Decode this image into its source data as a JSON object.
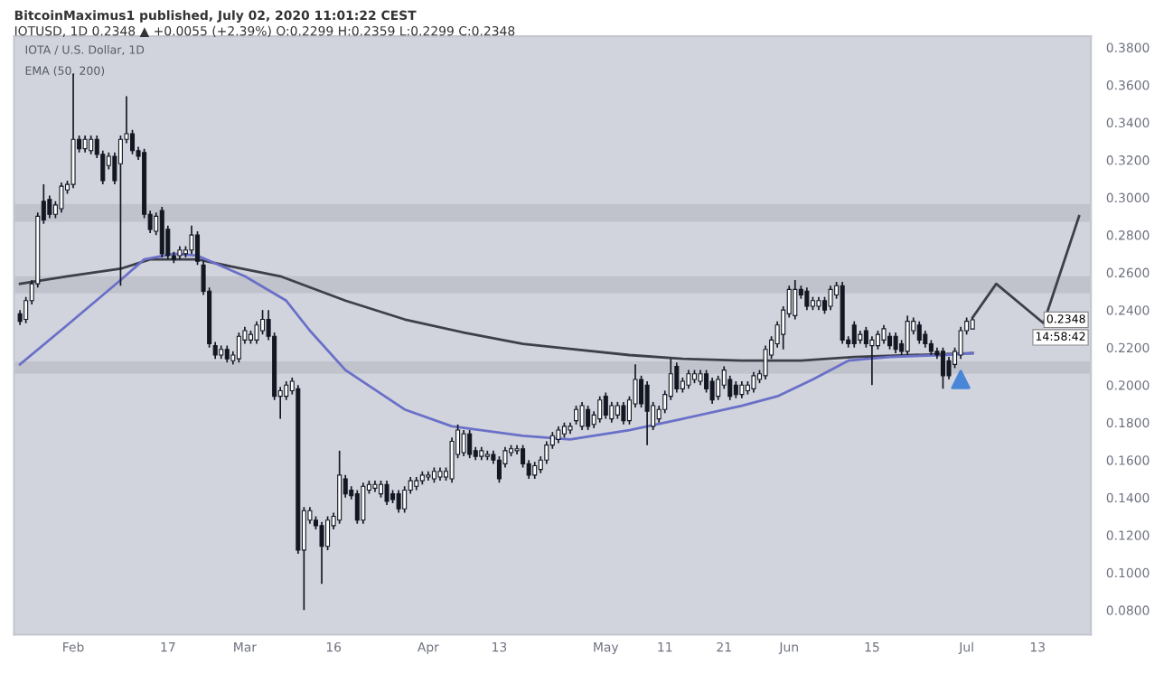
{
  "chart_data": {
    "type": "candlestick",
    "title": "BitcoinMaximus1 published, July 02, 2020 11:01:22 CEST",
    "subtitle": "IOTUSD, 1D 0.2348 ▲ +0.0055 (+2.39%) O:0.2299 H:0.2359 L:0.2299 C:0.2348",
    "annotations": [
      "IOTA / U.S. Dollar, 1D",
      "EMA (50, 200)",
      "0.2348",
      "14:58:42"
    ],
    "x": [
      "2020-01-23",
      "2020-01-24",
      "2020-01-25",
      "2020-01-26",
      "2020-01-27",
      "2020-01-28",
      "2020-01-29",
      "2020-01-30",
      "2020-01-31",
      "2020-02-01",
      "2020-02-02",
      "2020-02-03",
      "2020-02-04",
      "2020-02-05",
      "2020-02-06",
      "2020-02-07",
      "2020-02-08",
      "2020-02-09",
      "2020-02-10",
      "2020-02-11",
      "2020-02-12",
      "2020-02-13",
      "2020-02-14",
      "2020-02-15",
      "2020-02-16",
      "2020-02-17",
      "2020-02-18",
      "2020-02-19",
      "2020-02-20",
      "2020-02-21",
      "2020-02-22",
      "2020-02-23",
      "2020-02-24",
      "2020-02-25",
      "2020-02-26",
      "2020-02-27",
      "2020-02-28",
      "2020-02-29",
      "2020-03-01",
      "2020-03-02",
      "2020-03-03",
      "2020-03-04",
      "2020-03-05",
      "2020-03-06",
      "2020-03-07",
      "2020-03-08",
      "2020-03-09",
      "2020-03-10",
      "2020-03-11",
      "2020-03-12",
      "2020-03-13",
      "2020-03-14",
      "2020-03-15",
      "2020-03-16",
      "2020-03-17",
      "2020-03-18",
      "2020-03-19",
      "2020-03-20",
      "2020-03-21",
      "2020-03-22",
      "2020-03-23",
      "2020-03-24",
      "2020-03-25",
      "2020-03-26",
      "2020-03-27",
      "2020-03-28",
      "2020-03-29",
      "2020-03-30",
      "2020-03-31",
      "2020-04-01",
      "2020-04-02",
      "2020-04-03",
      "2020-04-04",
      "2020-04-05",
      "2020-04-06",
      "2020-04-07",
      "2020-04-08",
      "2020-04-09",
      "2020-04-10",
      "2020-04-11",
      "2020-04-12",
      "2020-04-13",
      "2020-04-14",
      "2020-04-15",
      "2020-04-16",
      "2020-04-17",
      "2020-04-18",
      "2020-04-19",
      "2020-04-20",
      "2020-04-21",
      "2020-04-22",
      "2020-04-23",
      "2020-04-24",
      "2020-04-25",
      "2020-04-26",
      "2020-04-27",
      "2020-04-28",
      "2020-04-29",
      "2020-04-30",
      "2020-05-01",
      "2020-05-02",
      "2020-05-03",
      "2020-05-04",
      "2020-05-05",
      "2020-05-06",
      "2020-05-07",
      "2020-05-08",
      "2020-05-09",
      "2020-05-10",
      "2020-05-11",
      "2020-05-12",
      "2020-05-13",
      "2020-05-14",
      "2020-05-15",
      "2020-05-16",
      "2020-05-17",
      "2020-05-18",
      "2020-05-19",
      "2020-05-20",
      "2020-05-21",
      "2020-05-22",
      "2020-05-23",
      "2020-05-24",
      "2020-05-25",
      "2020-05-26",
      "2020-05-27",
      "2020-05-28",
      "2020-05-29",
      "2020-05-30",
      "2020-05-31",
      "2020-06-01",
      "2020-06-02",
      "2020-06-03",
      "2020-06-04",
      "2020-06-05",
      "2020-06-06",
      "2020-06-07",
      "2020-06-08",
      "2020-06-09",
      "2020-06-10",
      "2020-06-11",
      "2020-06-12",
      "2020-06-13",
      "2020-06-14",
      "2020-06-15",
      "2020-06-16",
      "2020-06-17",
      "2020-06-18",
      "2020-06-19",
      "2020-06-20",
      "2020-06-21",
      "2020-06-22",
      "2020-06-23",
      "2020-06-24",
      "2020-06-25",
      "2020-06-26",
      "2020-06-27",
      "2020-06-28",
      "2020-06-29",
      "2020-06-30",
      "2020-07-01",
      "2020-07-02"
    ],
    "ohlc": [
      [
        0.238,
        0.24,
        0.232,
        0.234
      ],
      [
        0.235,
        0.247,
        0.233,
        0.245
      ],
      [
        0.245,
        0.256,
        0.243,
        0.254
      ],
      [
        0.254,
        0.292,
        0.252,
        0.29
      ],
      [
        0.298,
        0.307,
        0.286,
        0.288
      ],
      [
        0.299,
        0.301,
        0.289,
        0.291
      ],
      [
        0.291,
        0.298,
        0.289,
        0.296
      ],
      [
        0.294,
        0.308,
        0.292,
        0.306
      ],
      [
        0.304,
        0.309,
        0.302,
        0.307
      ],
      [
        0.307,
        0.366,
        0.305,
        0.331
      ],
      [
        0.331,
        0.333,
        0.324,
        0.326
      ],
      [
        0.326,
        0.333,
        0.324,
        0.331
      ],
      [
        0.325,
        0.333,
        0.323,
        0.331
      ],
      [
        0.331,
        0.333,
        0.321,
        0.323
      ],
      [
        0.323,
        0.325,
        0.307,
        0.309
      ],
      [
        0.317,
        0.324,
        0.315,
        0.322
      ],
      [
        0.322,
        0.324,
        0.307,
        0.309
      ],
      [
        0.318,
        0.333,
        0.253,
        0.331
      ],
      [
        0.331,
        0.354,
        0.329,
        0.334
      ],
      [
        0.334,
        0.336,
        0.323,
        0.325
      ],
      [
        0.325,
        0.327,
        0.32,
        0.322
      ],
      [
        0.324,
        0.326,
        0.289,
        0.291
      ],
      [
        0.291,
        0.293,
        0.281,
        0.283
      ],
      [
        0.282,
        0.292,
        0.28,
        0.29
      ],
      [
        0.293,
        0.295,
        0.268,
        0.27
      ],
      [
        0.283,
        0.285,
        0.267,
        0.269
      ],
      [
        0.269,
        0.271,
        0.265,
        0.267
      ],
      [
        0.269,
        0.274,
        0.267,
        0.272
      ],
      [
        0.27,
        0.274,
        0.268,
        0.272
      ],
      [
        0.272,
        0.285,
        0.27,
        0.28
      ],
      [
        0.28,
        0.282,
        0.264,
        0.266
      ],
      [
        0.264,
        0.266,
        0.248,
        0.25
      ],
      [
        0.25,
        0.252,
        0.22,
        0.222
      ],
      [
        0.221,
        0.223,
        0.214,
        0.216
      ],
      [
        0.216,
        0.221,
        0.214,
        0.219
      ],
      [
        0.219,
        0.221,
        0.212,
        0.214
      ],
      [
        0.213,
        0.218,
        0.211,
        0.216
      ],
      [
        0.214,
        0.228,
        0.212,
        0.226
      ],
      [
        0.224,
        0.231,
        0.222,
        0.229
      ],
      [
        0.224,
        0.229,
        0.222,
        0.227
      ],
      [
        0.224,
        0.234,
        0.222,
        0.232
      ],
      [
        0.229,
        0.24,
        0.227,
        0.235
      ],
      [
        0.235,
        0.24,
        0.224,
        0.226
      ],
      [
        0.226,
        0.228,
        0.192,
        0.194
      ],
      [
        0.194,
        0.199,
        0.182,
        0.197
      ],
      [
        0.194,
        0.202,
        0.192,
        0.2
      ],
      [
        0.197,
        0.204,
        0.195,
        0.202
      ],
      [
        0.198,
        0.2,
        0.11,
        0.112
      ],
      [
        0.112,
        0.135,
        0.08,
        0.133
      ],
      [
        0.128,
        0.135,
        0.126,
        0.133
      ],
      [
        0.128,
        0.13,
        0.123,
        0.125
      ],
      [
        0.125,
        0.127,
        0.094,
        0.114
      ],
      [
        0.114,
        0.13,
        0.112,
        0.128
      ],
      [
        0.125,
        0.132,
        0.123,
        0.13
      ],
      [
        0.128,
        0.165,
        0.126,
        0.152
      ],
      [
        0.15,
        0.152,
        0.14,
        0.142
      ],
      [
        0.144,
        0.146,
        0.139,
        0.141
      ],
      [
        0.142,
        0.144,
        0.126,
        0.128
      ],
      [
        0.128,
        0.148,
        0.126,
        0.146
      ],
      [
        0.144,
        0.149,
        0.142,
        0.147
      ],
      [
        0.145,
        0.149,
        0.143,
        0.147
      ],
      [
        0.142,
        0.149,
        0.14,
        0.147
      ],
      [
        0.147,
        0.149,
        0.136,
        0.138
      ],
      [
        0.142,
        0.144,
        0.137,
        0.139
      ],
      [
        0.142,
        0.144,
        0.132,
        0.134
      ],
      [
        0.134,
        0.146,
        0.132,
        0.144
      ],
      [
        0.144,
        0.151,
        0.142,
        0.149
      ],
      [
        0.146,
        0.151,
        0.144,
        0.149
      ],
      [
        0.149,
        0.154,
        0.147,
        0.152
      ],
      [
        0.151,
        0.154,
        0.149,
        0.152
      ],
      [
        0.15,
        0.156,
        0.148,
        0.154
      ],
      [
        0.151,
        0.156,
        0.149,
        0.154
      ],
      [
        0.151,
        0.156,
        0.149,
        0.154
      ],
      [
        0.15,
        0.172,
        0.148,
        0.17
      ],
      [
        0.163,
        0.179,
        0.161,
        0.176
      ],
      [
        0.164,
        0.176,
        0.162,
        0.174
      ],
      [
        0.174,
        0.176,
        0.161,
        0.163
      ],
      [
        0.165,
        0.167,
        0.16,
        0.162
      ],
      [
        0.162,
        0.167,
        0.16,
        0.165
      ],
      [
        0.162,
        0.165,
        0.16,
        0.163
      ],
      [
        0.163,
        0.165,
        0.158,
        0.16
      ],
      [
        0.16,
        0.162,
        0.148,
        0.15
      ],
      [
        0.158,
        0.167,
        0.156,
        0.165
      ],
      [
        0.164,
        0.168,
        0.162,
        0.166
      ],
      [
        0.165,
        0.168,
        0.163,
        0.166
      ],
      [
        0.166,
        0.168,
        0.156,
        0.158
      ],
      [
        0.158,
        0.16,
        0.15,
        0.152
      ],
      [
        0.152,
        0.159,
        0.15,
        0.157
      ],
      [
        0.155,
        0.162,
        0.153,
        0.16
      ],
      [
        0.16,
        0.17,
        0.158,
        0.168
      ],
      [
        0.168,
        0.175,
        0.166,
        0.173
      ],
      [
        0.171,
        0.178,
        0.169,
        0.176
      ],
      [
        0.174,
        0.18,
        0.172,
        0.178
      ],
      [
        0.176,
        0.18,
        0.174,
        0.178
      ],
      [
        0.181,
        0.189,
        0.179,
        0.187
      ],
      [
        0.178,
        0.191,
        0.176,
        0.189
      ],
      [
        0.187,
        0.189,
        0.176,
        0.178
      ],
      [
        0.179,
        0.186,
        0.177,
        0.184
      ],
      [
        0.182,
        0.194,
        0.18,
        0.192
      ],
      [
        0.194,
        0.196,
        0.182,
        0.184
      ],
      [
        0.182,
        0.191,
        0.18,
        0.189
      ],
      [
        0.184,
        0.191,
        0.182,
        0.189
      ],
      [
        0.189,
        0.191,
        0.179,
        0.181
      ],
      [
        0.181,
        0.194,
        0.179,
        0.192
      ],
      [
        0.19,
        0.211,
        0.188,
        0.203
      ],
      [
        0.203,
        0.205,
        0.188,
        0.19
      ],
      [
        0.2,
        0.202,
        0.168,
        0.186
      ],
      [
        0.178,
        0.191,
        0.176,
        0.189
      ],
      [
        0.182,
        0.189,
        0.18,
        0.187
      ],
      [
        0.187,
        0.197,
        0.185,
        0.195
      ],
      [
        0.194,
        0.214,
        0.192,
        0.206
      ],
      [
        0.21,
        0.212,
        0.196,
        0.198
      ],
      [
        0.198,
        0.204,
        0.196,
        0.202
      ],
      [
        0.2,
        0.208,
        0.198,
        0.206
      ],
      [
        0.203,
        0.208,
        0.201,
        0.206
      ],
      [
        0.202,
        0.208,
        0.2,
        0.206
      ],
      [
        0.206,
        0.208,
        0.196,
        0.198
      ],
      [
        0.202,
        0.204,
        0.19,
        0.192
      ],
      [
        0.194,
        0.205,
        0.192,
        0.203
      ],
      [
        0.2,
        0.21,
        0.198,
        0.208
      ],
      [
        0.203,
        0.205,
        0.192,
        0.194
      ],
      [
        0.2,
        0.202,
        0.193,
        0.195
      ],
      [
        0.195,
        0.202,
        0.193,
        0.2
      ],
      [
        0.197,
        0.202,
        0.195,
        0.2
      ],
      [
        0.198,
        0.207,
        0.196,
        0.205
      ],
      [
        0.203,
        0.208,
        0.201,
        0.206
      ],
      [
        0.205,
        0.221,
        0.203,
        0.219
      ],
      [
        0.216,
        0.226,
        0.214,
        0.224
      ],
      [
        0.222,
        0.234,
        0.22,
        0.232
      ],
      [
        0.227,
        0.242,
        0.219,
        0.24
      ],
      [
        0.238,
        0.253,
        0.236,
        0.251
      ],
      [
        0.237,
        0.256,
        0.235,
        0.251
      ],
      [
        0.251,
        0.253,
        0.246,
        0.248
      ],
      [
        0.25,
        0.252,
        0.24,
        0.242
      ],
      [
        0.242,
        0.247,
        0.24,
        0.245
      ],
      [
        0.242,
        0.247,
        0.24,
        0.245
      ],
      [
        0.245,
        0.247,
        0.238,
        0.24
      ],
      [
        0.242,
        0.253,
        0.24,
        0.251
      ],
      [
        0.248,
        0.255,
        0.246,
        0.253
      ],
      [
        0.253,
        0.255,
        0.222,
        0.224
      ],
      [
        0.224,
        0.226,
        0.22,
        0.222
      ],
      [
        0.232,
        0.234,
        0.22,
        0.222
      ],
      [
        0.224,
        0.229,
        0.222,
        0.227
      ],
      [
        0.229,
        0.231,
        0.22,
        0.222
      ],
      [
        0.221,
        0.226,
        0.2,
        0.224
      ],
      [
        0.221,
        0.229,
        0.219,
        0.227
      ],
      [
        0.224,
        0.232,
        0.222,
        0.23
      ],
      [
        0.226,
        0.228,
        0.219,
        0.221
      ],
      [
        0.226,
        0.228,
        0.217,
        0.219
      ],
      [
        0.222,
        0.224,
        0.216,
        0.218
      ],
      [
        0.218,
        0.237,
        0.216,
        0.234
      ],
      [
        0.229,
        0.236,
        0.227,
        0.234
      ],
      [
        0.232,
        0.234,
        0.222,
        0.224
      ],
      [
        0.227,
        0.229,
        0.22,
        0.222
      ],
      [
        0.222,
        0.224,
        0.216,
        0.218
      ],
      [
        0.218,
        0.22,
        0.214,
        0.216
      ],
      [
        0.218,
        0.22,
        0.198,
        0.205
      ],
      [
        0.213,
        0.215,
        0.203,
        0.205
      ],
      [
        0.211,
        0.22,
        0.209,
        0.218
      ],
      [
        0.216,
        0.231,
        0.214,
        0.229
      ],
      [
        0.229,
        0.236,
        0.227,
        0.234
      ],
      [
        0.2299,
        0.2359,
        0.2299,
        0.2348
      ]
    ],
    "series": [
      {
        "type": "line",
        "color": "#3d3f4a",
        "x": [
          "2020-01-23",
          "2020-01-31",
          "2020-02-09",
          "2020-02-14",
          "2020-02-22",
          "2020-02-28",
          "2020-03-07",
          "2020-03-18",
          "2020-03-28",
          "2020-04-07",
          "2020-04-17",
          "2020-04-26",
          "2020-05-05",
          "2020-05-14",
          "2020-05-24",
          "2020-06-03",
          "2020-06-12",
          "2020-06-22",
          "2020-07-02"
        ],
        "values": [
          0.254,
          0.258,
          0.262,
          0.267,
          0.267,
          0.263,
          0.258,
          0.245,
          0.235,
          0.228,
          0.222,
          0.219,
          0.216,
          0.214,
          0.213,
          0.213,
          0.215,
          0.216,
          0.217
        ]
      },
      {
        "type": "line",
        "color": "#6a70c8",
        "x": [
          "2020-01-23",
          "2020-01-31",
          "2020-02-09",
          "2020-02-13",
          "2020-02-18",
          "2020-02-22",
          "2020-03-01",
          "2020-03-08",
          "2020-03-12",
          "2020-03-18",
          "2020-03-28",
          "2020-04-05",
          "2020-04-17",
          "2020-04-25",
          "2020-05-05",
          "2020-05-14",
          "2020-05-24",
          "2020-05-30",
          "2020-06-05",
          "2020-06-11",
          "2020-06-18",
          "2020-06-27",
          "2020-07-02"
        ],
        "values": [
          0.211,
          0.232,
          0.256,
          0.267,
          0.27,
          0.269,
          0.258,
          0.245,
          0.229,
          0.208,
          0.187,
          0.178,
          0.173,
          0.171,
          0.176,
          0.182,
          0.189,
          0.194,
          0.203,
          0.213,
          0.215,
          0.216,
          0.217
        ]
      },
      {
        "type": "line",
        "color": "#3d3f4a",
        "x": [
          "2020-07-02",
          "2020-07-06",
          "2020-07-14",
          "2020-07-20"
        ],
        "values": [
          0.236,
          0.254,
          0.233,
          0.29
        ]
      },
      {
        "type": "scatter",
        "color": "#4a86d8",
        "marker": "triangle",
        "x": [
          "2020-06-30"
        ],
        "values": [
          0.203
        ]
      }
    ],
    "bands": [
      {
        "axis": "y",
        "from": 0.287,
        "to": 0.2965,
        "color": "#b9bcc4"
      },
      {
        "axis": "y",
        "from": 0.249,
        "to": 0.258,
        "color": "#b9bcc4"
      },
      {
        "axis": "y",
        "from": 0.206,
        "to": 0.2126,
        "color": "#b9bcc4"
      }
    ],
    "xlim": [
      "2020-01-22",
      "2020-07-22"
    ],
    "xticks": [
      {
        "value": "2020-02-01",
        "label": "Feb"
      },
      {
        "value": "2020-02-17",
        "label": "17"
      },
      {
        "value": "2020-03-01",
        "label": "Mar"
      },
      {
        "value": "2020-03-16",
        "label": "16"
      },
      {
        "value": "2020-04-01",
        "label": "Apr"
      },
      {
        "value": "2020-04-13",
        "label": "13"
      },
      {
        "value": "2020-05-01",
        "label": "May"
      },
      {
        "value": "2020-05-11",
        "label": "11"
      },
      {
        "value": "2020-05-21",
        "label": "21"
      },
      {
        "value": "2020-06-01",
        "label": "Jun"
      },
      {
        "value": "2020-06-15",
        "label": "15"
      },
      {
        "value": "2020-07-01",
        "label": "Jul"
      },
      {
        "value": "2020-07-13",
        "label": "13"
      }
    ],
    "ylim": [
      0.067,
      0.386
    ],
    "yticks": [
      {
        "value": 0.08,
        "label": "0.0800"
      },
      {
        "value": 0.1,
        "label": "0.1000"
      },
      {
        "value": 0.12,
        "label": "0.1200"
      },
      {
        "value": 0.14,
        "label": "0.1400"
      },
      {
        "value": 0.16,
        "label": "0.1600"
      },
      {
        "value": 0.18,
        "label": "0.1800"
      },
      {
        "value": 0.2,
        "label": "0.2000"
      },
      {
        "value": 0.22,
        "label": "0.2200"
      },
      {
        "value": 0.24,
        "label": "0.2400"
      },
      {
        "value": 0.26,
        "label": "0.2600"
      },
      {
        "value": 0.28,
        "label": "0.2800"
      },
      {
        "value": 0.3,
        "label": "0.3000"
      },
      {
        "value": 0.32,
        "label": "0.3200"
      },
      {
        "value": 0.34,
        "label": "0.3400"
      },
      {
        "value": 0.36,
        "label": "0.3600"
      },
      {
        "value": 0.38,
        "label": "0.3800"
      }
    ],
    "grid": false,
    "legend": false
  }
}
